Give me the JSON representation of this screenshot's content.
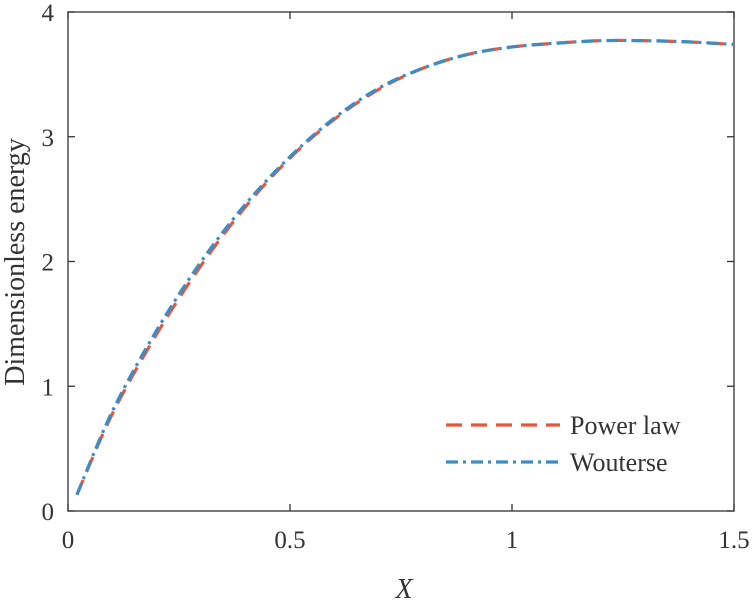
{
  "chart_data": {
    "type": "line",
    "title": "",
    "xlabel": "X",
    "ylabel": "Dimensionless energy",
    "xlim": [
      0,
      1.5
    ],
    "ylim": [
      0,
      4
    ],
    "x_ticks": [
      0,
      0.5,
      1,
      1.5
    ],
    "x_tick_labels": [
      "0",
      "0.5",
      "1",
      "1.5"
    ],
    "y_ticks": [
      0,
      1,
      2,
      3,
      4
    ],
    "y_tick_labels": [
      "0",
      "1",
      "2",
      "3",
      "4"
    ],
    "grid": false,
    "legend_position": "bottom-right",
    "series": [
      {
        "name": "Power law",
        "color": "#e8553a",
        "style": "dashed",
        "x": [
          0.02,
          0.1,
          0.2,
          0.3,
          0.4,
          0.5,
          0.6,
          0.7,
          0.8,
          0.9,
          1.0,
          1.1,
          1.2,
          1.3,
          1.4,
          1.5
        ],
        "y": [
          0.13,
          0.78,
          1.42,
          1.97,
          2.44,
          2.83,
          3.14,
          3.38,
          3.55,
          3.66,
          3.72,
          3.75,
          3.77,
          3.77,
          3.76,
          3.74
        ]
      },
      {
        "name": "Wouterse",
        "color": "#3a8ec8",
        "style": "dashdot",
        "x": [
          0.02,
          0.1,
          0.2,
          0.3,
          0.4,
          0.5,
          0.6,
          0.7,
          0.8,
          0.9,
          1.0,
          1.1,
          1.2,
          1.3,
          1.4,
          1.5
        ],
        "y": [
          0.13,
          0.8,
          1.45,
          2.0,
          2.46,
          2.84,
          3.15,
          3.39,
          3.55,
          3.66,
          3.72,
          3.75,
          3.77,
          3.77,
          3.76,
          3.74
        ]
      }
    ]
  }
}
